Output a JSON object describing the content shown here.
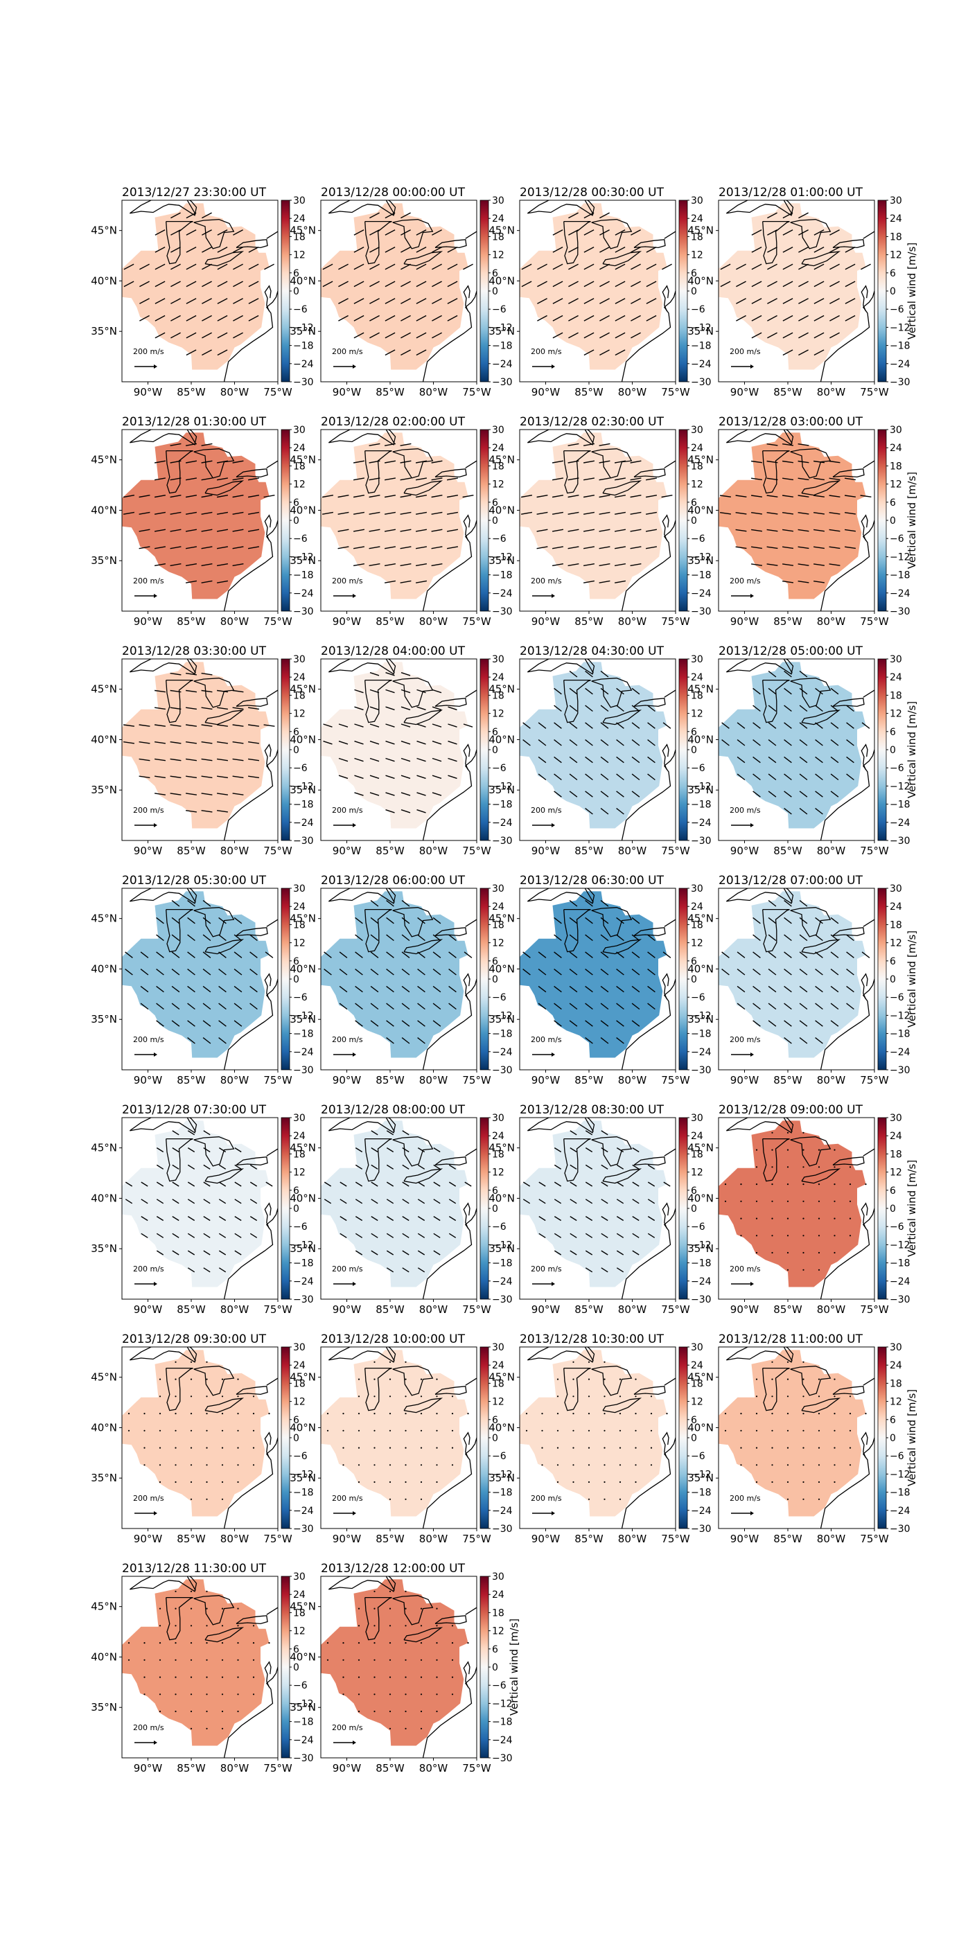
{
  "chart_data": {
    "type": "heatmap",
    "description_type": "small-multiple map panels with quiver arrows",
    "colormap": "RdBu_r",
    "colorbar": {
      "label": "Vertical wind [m/s]",
      "ticks": [
        "30",
        "24",
        "18",
        "12",
        "6",
        "0",
        "−6",
        "−12",
        "−18",
        "−24",
        "−30"
      ],
      "vmin": -30,
      "vmax": 30
    },
    "axes": {
      "lon_ticks": [
        "90°W",
        "85°W",
        "80°W",
        "75°W"
      ],
      "lat_ticks": [
        "45°N",
        "40°N",
        "35°N"
      ],
      "lon_range": [
        -93,
        -75
      ],
      "lat_range": [
        30,
        48
      ]
    },
    "quiver_key": {
      "label": "200",
      "unit_glyph": "m/s"
    },
    "panels": [
      {
        "title": "2013/12/27 23:30:00 UT",
        "value": 7
      },
      {
        "title": "2013/12/28 00:00:00 UT",
        "value": 7
      },
      {
        "title": "2013/12/28 00:30:00 UT",
        "value": 6
      },
      {
        "title": "2013/12/28 01:00:00 UT",
        "value": 5
      },
      {
        "title": "2013/12/28 01:30:00 UT",
        "value": 15
      },
      {
        "title": "2013/12/28 02:00:00 UT",
        "value": 6
      },
      {
        "title": "2013/12/28 02:30:00 UT",
        "value": 5
      },
      {
        "title": "2013/12/28 03:00:00 UT",
        "value": 12
      },
      {
        "title": "2013/12/28 03:30:00 UT",
        "value": 7
      },
      {
        "title": "2013/12/28 04:00:00 UT",
        "value": 2
      },
      {
        "title": "2013/12/28 04:30:00 UT",
        "value": -8
      },
      {
        "title": "2013/12/28 05:00:00 UT",
        "value": -10
      },
      {
        "title": "2013/12/28 05:30:00 UT",
        "value": -12
      },
      {
        "title": "2013/12/28 06:00:00 UT",
        "value": -12
      },
      {
        "title": "2013/12/28 06:30:00 UT",
        "value": -17
      },
      {
        "title": "2013/12/28 07:00:00 UT",
        "value": -7
      },
      {
        "title": "2013/12/28 07:30:00 UT",
        "value": -2
      },
      {
        "title": "2013/12/28 08:00:00 UT",
        "value": -4
      },
      {
        "title": "2013/12/28 08:30:00 UT",
        "value": -4
      },
      {
        "title": "2013/12/28 09:00:00 UT",
        "value": 16
      },
      {
        "title": "2013/12/28 09:30:00 UT",
        "value": 7
      },
      {
        "title": "2013/12/28 10:00:00 UT",
        "value": 5
      },
      {
        "title": "2013/12/28 10:30:00 UT",
        "value": 5
      },
      {
        "title": "2013/12/28 11:00:00 UT",
        "value": 9
      },
      {
        "title": "2013/12/28 11:30:00 UT",
        "value": 13
      },
      {
        "title": "2013/12/28 12:00:00 UT",
        "value": 15
      }
    ]
  }
}
